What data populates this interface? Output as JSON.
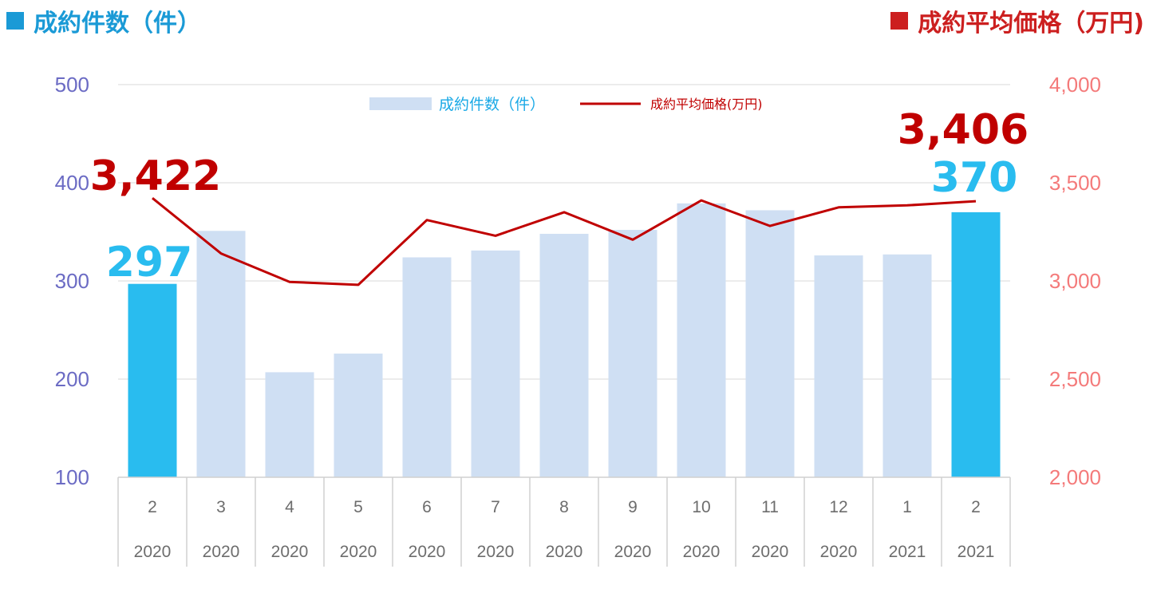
{
  "header": {
    "left_title": "成約件数（件）",
    "right_title": "成約平均価格（万円)"
  },
  "legend": {
    "bar_label": "成約件数（件）",
    "line_label": "成約平均価格(万円)"
  },
  "colors": {
    "bar": "#cfdff3",
    "bar_highlight": "#29bcef",
    "line": "#c00000",
    "left_axis": "#6b6bc4",
    "right_axis": "#f47a7a",
    "annotation_price": "#c00000",
    "annotation_count": "#29bcef"
  },
  "chart_data": {
    "type": "bar",
    "categories": [
      "2",
      "3",
      "4",
      "5",
      "6",
      "7",
      "8",
      "9",
      "10",
      "11",
      "12",
      "1",
      "2"
    ],
    "category_years": [
      "2020",
      "2020",
      "2020",
      "2020",
      "2020",
      "2020",
      "2020",
      "2020",
      "2020",
      "2020",
      "2020",
      "2021",
      "2021"
    ],
    "series": [
      {
        "name": "成約件数（件）",
        "type": "bar",
        "axis": "left",
        "values": [
          297,
          351,
          207,
          226,
          324,
          331,
          348,
          352,
          379,
          372,
          326,
          327,
          370
        ],
        "highlight": [
          true,
          false,
          false,
          false,
          false,
          false,
          false,
          false,
          false,
          false,
          false,
          false,
          true
        ]
      },
      {
        "name": "成約平均価格(万円)",
        "type": "line",
        "axis": "right",
        "values": [
          3422,
          3140,
          2995,
          2980,
          3310,
          3230,
          3350,
          3210,
          3410,
          3280,
          3375,
          3385,
          3406
        ]
      }
    ],
    "left_axis": {
      "ylim": [
        100,
        500
      ],
      "ticks": [
        "100",
        "200",
        "300",
        "400",
        "500"
      ]
    },
    "right_axis": {
      "ylim": [
        2000,
        4000
      ],
      "ticks": [
        "2,000",
        "2,500",
        "3,000",
        "3,500",
        "4,000"
      ]
    },
    "annotations": {
      "first_price": "3,422",
      "last_price": "3,406",
      "first_count": "297",
      "last_count": "370"
    },
    "grid": true,
    "legend_position": "top-center"
  }
}
